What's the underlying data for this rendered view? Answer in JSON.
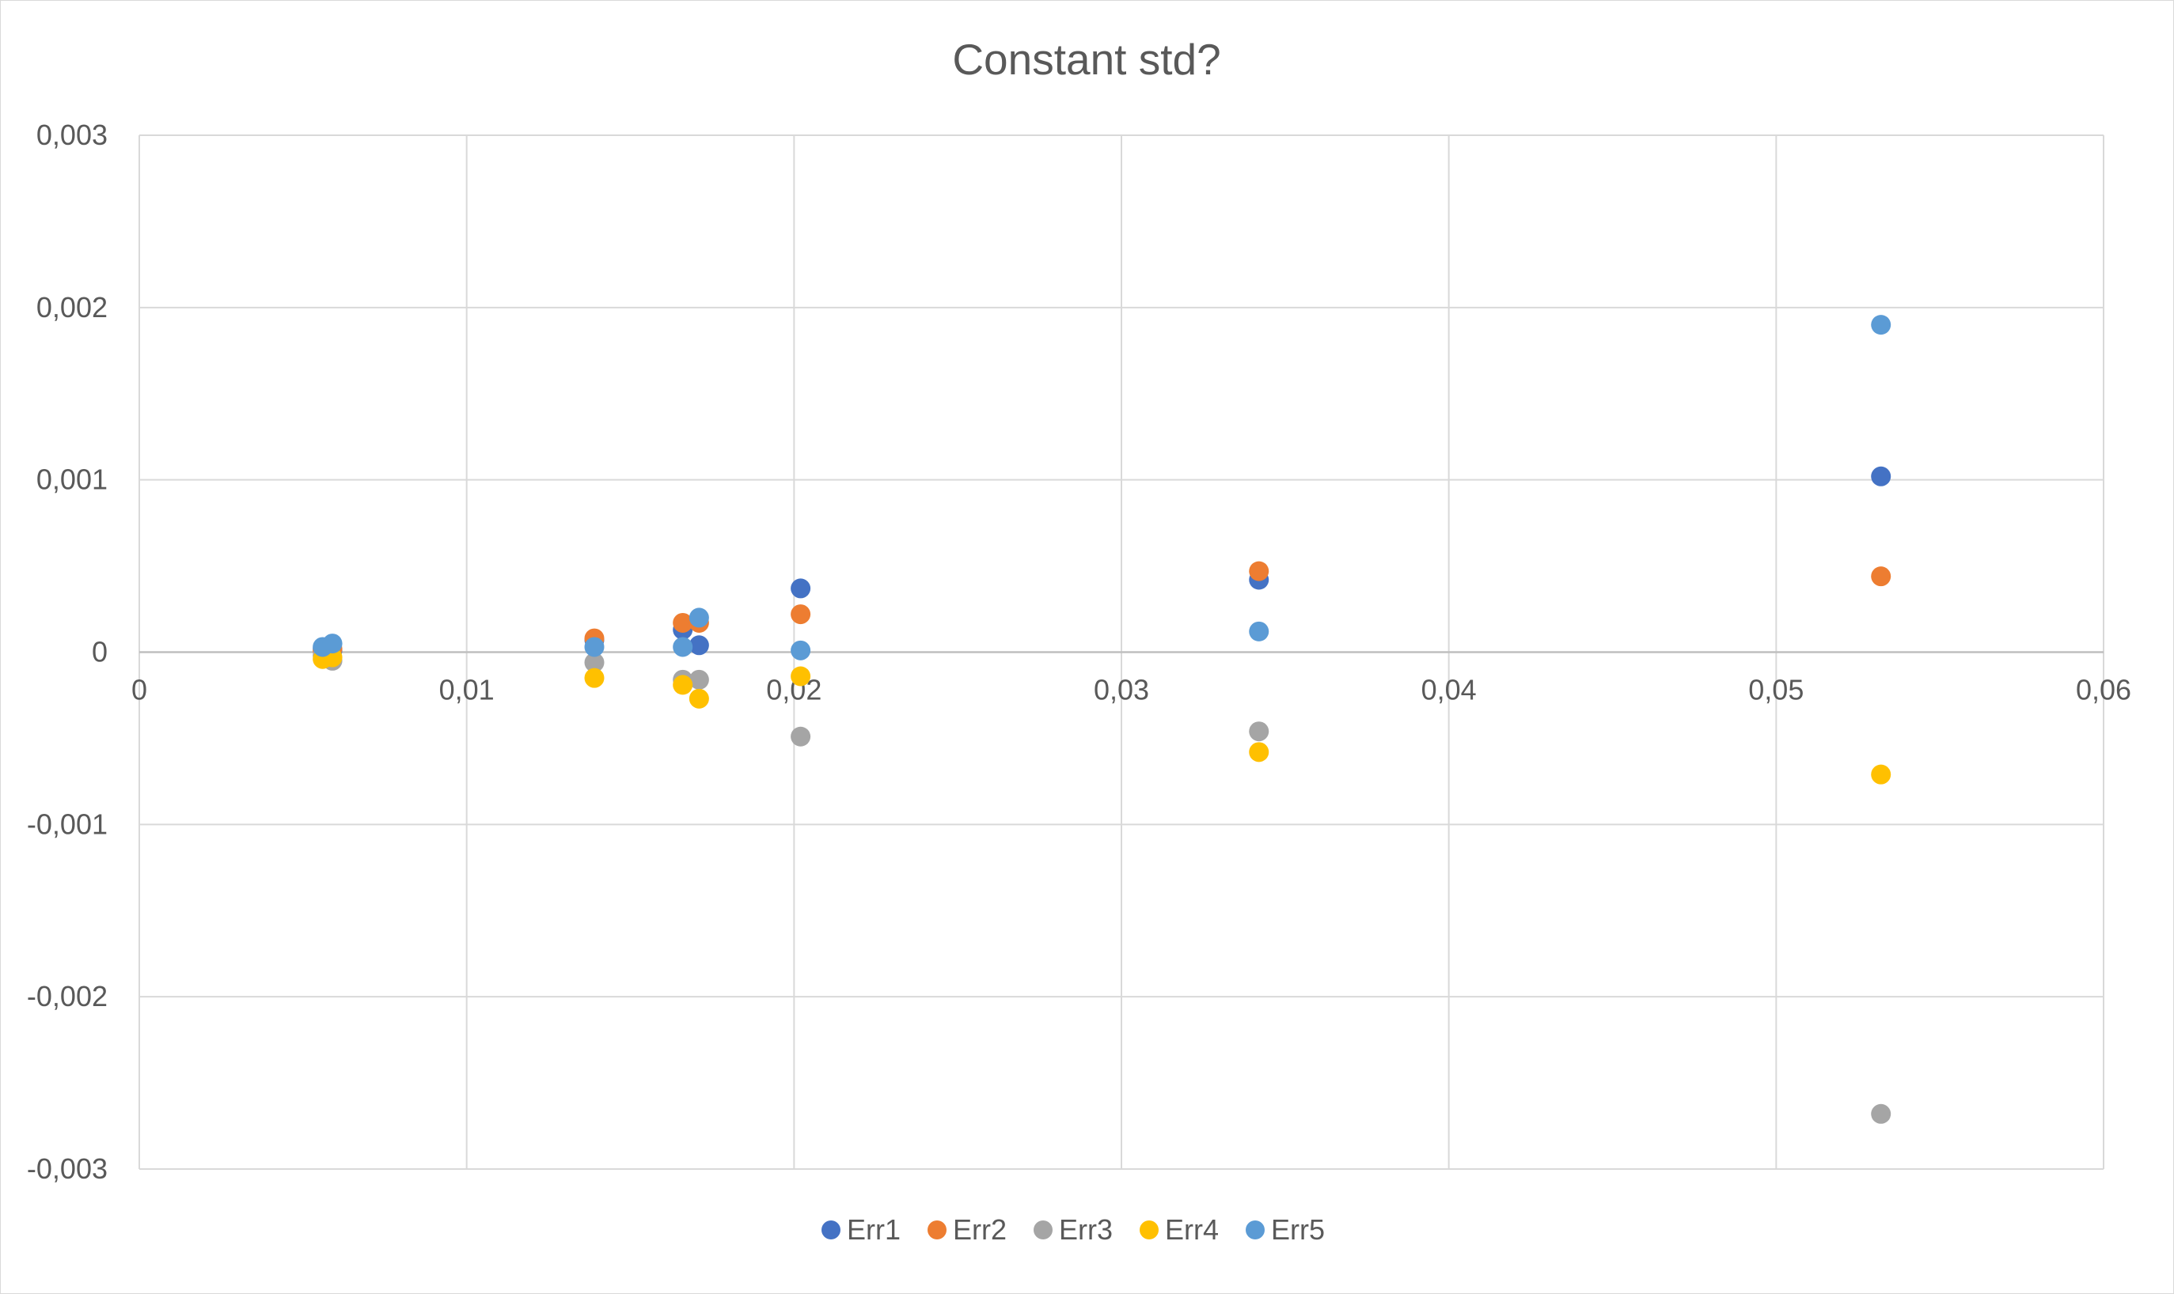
{
  "chart_data": {
    "type": "scatter",
    "title": "Constant std?",
    "xlabel": "",
    "ylabel": "",
    "xlim": [
      0,
      0.06
    ],
    "ylim": [
      -0.003,
      0.003
    ],
    "x_ticks": [
      0,
      0.01,
      0.02,
      0.03,
      0.04,
      0.05,
      0.06
    ],
    "x_tick_labels": [
      "0",
      "0,01",
      "0,02",
      "0,03",
      "0,04",
      "0,05",
      "0,06"
    ],
    "y_ticks": [
      0.003,
      0.002,
      0.001,
      0,
      -0.001,
      -0.002,
      -0.003
    ],
    "y_tick_labels": [
      "0,003",
      "0,002",
      "0,001",
      "0",
      "-0,001",
      "-0,002",
      "-0,003"
    ],
    "grid": true,
    "legend_position": "bottom",
    "series": [
      {
        "name": "Err1",
        "color": "#4472C4",
        "points": [
          [
            0.0056,
            2e-05
          ],
          [
            0.0059,
            1e-05
          ],
          [
            0.0139,
            7e-05
          ],
          [
            0.0166,
            0.00013
          ],
          [
            0.0171,
            4e-05
          ],
          [
            0.0202,
            0.00037
          ],
          [
            0.0342,
            0.00042
          ],
          [
            0.0532,
            0.00102
          ]
        ]
      },
      {
        "name": "Err2",
        "color": "#ED7D31",
        "points": [
          [
            0.0056,
            1e-05
          ],
          [
            0.0059,
            2e-05
          ],
          [
            0.0139,
            8e-05
          ],
          [
            0.0166,
            0.00017
          ],
          [
            0.0171,
            0.00017
          ],
          [
            0.0202,
            0.00022
          ],
          [
            0.0342,
            0.00047
          ],
          [
            0.0532,
            0.00044
          ]
        ]
      },
      {
        "name": "Err3",
        "color": "#A5A5A5",
        "points": [
          [
            0.0056,
            -2e-05
          ],
          [
            0.0059,
            -5e-05
          ],
          [
            0.0139,
            -6e-05
          ],
          [
            0.0166,
            -0.00016
          ],
          [
            0.0171,
            -0.00016
          ],
          [
            0.0202,
            -0.00049
          ],
          [
            0.0342,
            -0.00046
          ],
          [
            0.0532,
            -0.00268
          ]
        ]
      },
      {
        "name": "Err4",
        "color": "#FFC000",
        "points": [
          [
            0.0056,
            -4e-05
          ],
          [
            0.0059,
            -3e-05
          ],
          [
            0.0139,
            -0.00015
          ],
          [
            0.0166,
            -0.00019
          ],
          [
            0.0171,
            -0.00027
          ],
          [
            0.0202,
            -0.00014
          ],
          [
            0.0342,
            -0.00058
          ],
          [
            0.0532,
            -0.00071
          ]
        ]
      },
      {
        "name": "Err5",
        "color": "#5B9BD5",
        "points": [
          [
            0.0056,
            3e-05
          ],
          [
            0.0059,
            5e-05
          ],
          [
            0.0139,
            3e-05
          ],
          [
            0.0166,
            3e-05
          ],
          [
            0.0171,
            0.0002
          ],
          [
            0.0202,
            1e-05
          ],
          [
            0.0342,
            0.00012
          ],
          [
            0.0532,
            0.0019
          ]
        ]
      }
    ]
  }
}
